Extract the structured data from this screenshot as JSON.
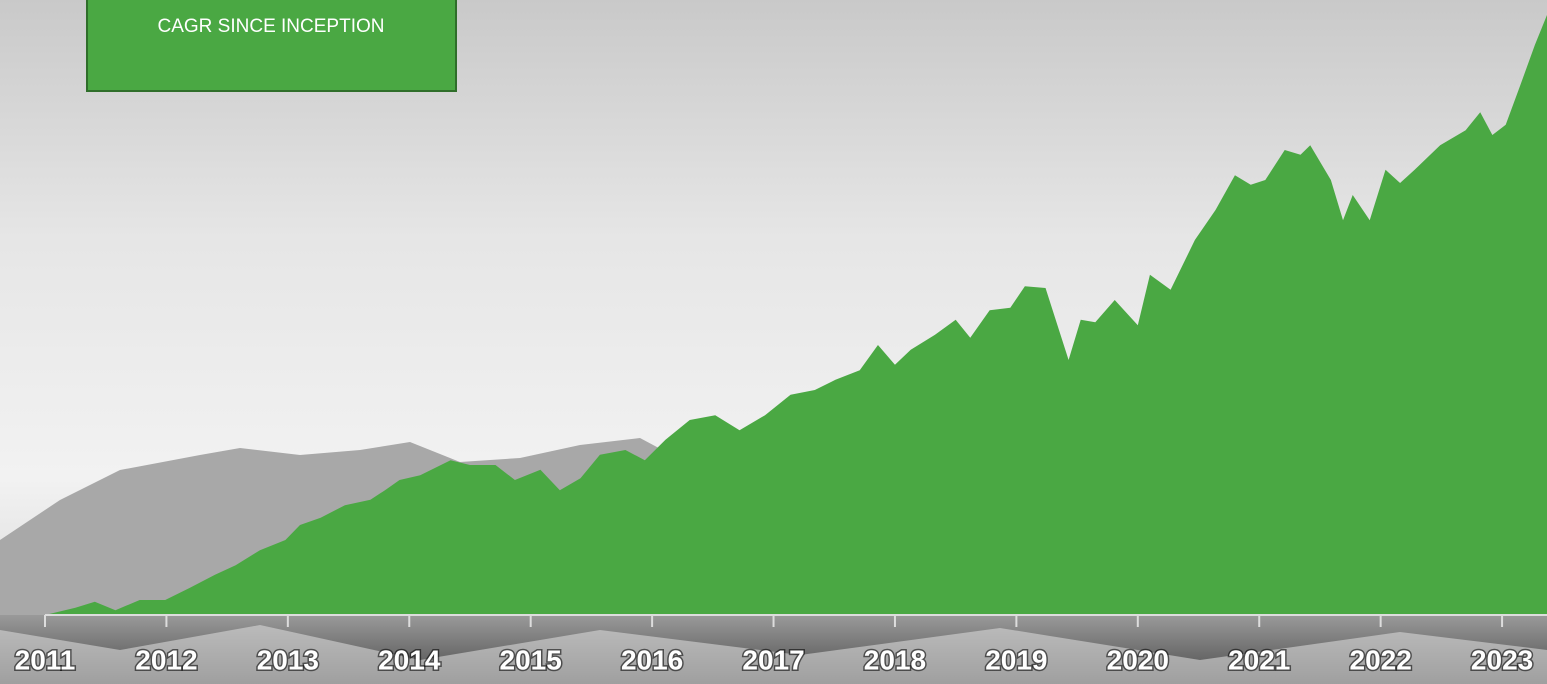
{
  "chart_data": {
    "type": "area",
    "label": "CAGR SINCE INCEPTION",
    "color": "#4aa843",
    "x": [
      2011.0,
      2011.25,
      2011.41,
      2011.58,
      2011.78,
      2011.99,
      2012.19,
      2012.4,
      2012.57,
      2012.77,
      2012.98,
      2013.1,
      2013.27,
      2013.47,
      2013.68,
      2013.8,
      2013.92,
      2014.09,
      2014.34,
      2014.5,
      2014.71,
      2014.87,
      2015.08,
      2015.24,
      2015.41,
      2015.57,
      2015.78,
      2015.94,
      2016.11,
      2016.31,
      2016.52,
      2016.72,
      2016.93,
      2017.14,
      2017.34,
      2017.51,
      2017.71,
      2017.86,
      2018.0,
      2018.13,
      2018.33,
      2018.5,
      2018.62,
      2018.78,
      2018.95,
      2019.07,
      2019.24,
      2019.43,
      2019.53,
      2019.65,
      2019.81,
      2020.0,
      2020.1,
      2020.27,
      2020.47,
      2020.64,
      2020.8,
      2020.93,
      2021.05,
      2021.21,
      2021.34,
      2021.42,
      2021.59,
      2021.69,
      2021.77,
      2021.91,
      2022.04,
      2022.16,
      2022.28,
      2022.49,
      2022.7,
      2022.82,
      2022.92,
      2023.03,
      2023.15,
      2023.27,
      2023.37
    ],
    "values": [
      0,
      1.2,
      2.2,
      0.8,
      2.5,
      2.5,
      4.5,
      6.7,
      8.3,
      10.8,
      12.5,
      15,
      16.2,
      18.3,
      19.2,
      20.8,
      22.5,
      23.3,
      25.8,
      25,
      25,
      22.5,
      24.2,
      20.8,
      22.8,
      26.7,
      27.5,
      25.8,
      29.2,
      32.5,
      33.3,
      30.8,
      33.3,
      36.7,
      37.5,
      39.2,
      40.8,
      45,
      41.7,
      44.2,
      46.7,
      49.2,
      46.2,
      50.8,
      51.2,
      54.8,
      54.5,
      42.5,
      49.2,
      48.8,
      52.5,
      48.3,
      56.7,
      54.2,
      62.5,
      67.5,
      73.3,
      71.7,
      72.5,
      77.5,
      76.7,
      78.3,
      72.5,
      65.8,
      70,
      65.8,
      74.2,
      72,
      74.2,
      78.3,
      80.8,
      83.8,
      80,
      81.7,
      88.3,
      95,
      100
    ],
    "xlim": [
      2011,
      2023.37
    ],
    "xticks": [
      2011,
      2012,
      2013,
      2014,
      2015,
      2016,
      2017,
      2018,
      2019,
      2020,
      2021,
      2022,
      2023
    ],
    "ylim": [
      0,
      100
    ]
  }
}
